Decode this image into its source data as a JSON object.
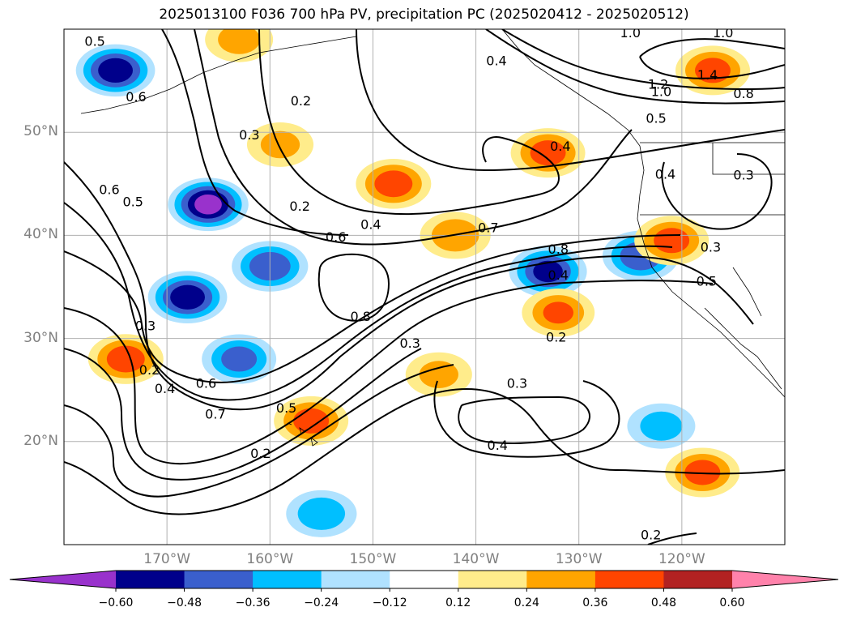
{
  "title": "2025013100 F036 700 hPa PV, precipitation PC (2025020412 - 2025020512)",
  "map": {
    "projection": "PlateCarree",
    "lon_range": [
      -180,
      -110
    ],
    "lat_range": [
      10,
      60
    ],
    "lat_ticks": [
      {
        "value": 20,
        "label": "20°N"
      },
      {
        "value": 30,
        "label": "30°N"
      },
      {
        "value": 40,
        "label": "40°N"
      },
      {
        "value": 50,
        "label": "50°N"
      }
    ],
    "lon_ticks": [
      {
        "value": -170,
        "label": "170°W"
      },
      {
        "value": -160,
        "label": "160°W"
      },
      {
        "value": -150,
        "label": "150°W"
      },
      {
        "value": -140,
        "label": "140°W"
      },
      {
        "value": -130,
        "label": "130°W"
      },
      {
        "value": -120,
        "label": "120°W"
      }
    ],
    "gridlines": true,
    "contour_line_color": "#000000",
    "contour_labels": [
      {
        "text": "0.5",
        "lon": -177,
        "lat": 58.8
      },
      {
        "text": "0.6",
        "lon": -173,
        "lat": 53.4
      },
      {
        "text": "0.2",
        "lon": -157,
        "lat": 53.0
      },
      {
        "text": "0.3",
        "lon": -162,
        "lat": 49.7
      },
      {
        "text": "0.4",
        "lon": -138,
        "lat": 56.9
      },
      {
        "text": "1.0",
        "lon": -125,
        "lat": 59.6
      },
      {
        "text": "1.0",
        "lon": -116,
        "lat": 59.6
      },
      {
        "text": "1.4",
        "lon": -117.5,
        "lat": 55.5
      },
      {
        "text": "1.2",
        "lon": -122.3,
        "lat": 54.6
      },
      {
        "text": "1.0",
        "lon": -122,
        "lat": 53.9
      },
      {
        "text": "0.8",
        "lon": -114,
        "lat": 53.7
      },
      {
        "text": "0.5",
        "lon": -122.5,
        "lat": 51.3
      },
      {
        "text": "0.4",
        "lon": -131.8,
        "lat": 48.6
      },
      {
        "text": "0.4",
        "lon": -121.6,
        "lat": 45.9
      },
      {
        "text": "0.3",
        "lon": -114,
        "lat": 45.8
      },
      {
        "text": "0.6",
        "lon": -175.6,
        "lat": 44.4
      },
      {
        "text": "0.5",
        "lon": -173.3,
        "lat": 43.2
      },
      {
        "text": "0.2",
        "lon": -157.1,
        "lat": 42.8
      },
      {
        "text": "0.4",
        "lon": -150.2,
        "lat": 41.0
      },
      {
        "text": "0.6",
        "lon": -153.6,
        "lat": 39.8
      },
      {
        "text": "0.7",
        "lon": -138.8,
        "lat": 40.7
      },
      {
        "text": "0.8",
        "lon": -132,
        "lat": 38.6
      },
      {
        "text": "0.4",
        "lon": -132,
        "lat": 36.1
      },
      {
        "text": "0.3",
        "lon": -117.2,
        "lat": 38.8
      },
      {
        "text": "0.5",
        "lon": -117.6,
        "lat": 35.5
      },
      {
        "text": "0.8",
        "lon": -151.2,
        "lat": 32.1
      },
      {
        "text": "0.3",
        "lon": -172.1,
        "lat": 31.2
      },
      {
        "text": "0.2",
        "lon": -171.7,
        "lat": 26.9
      },
      {
        "text": "0.2",
        "lon": -132.2,
        "lat": 30.1
      },
      {
        "text": "0.3",
        "lon": -146.4,
        "lat": 29.5
      },
      {
        "text": "0.3",
        "lon": -136,
        "lat": 25.6
      },
      {
        "text": "0.4",
        "lon": -170.2,
        "lat": 25.1
      },
      {
        "text": "0.6",
        "lon": -166.2,
        "lat": 25.6
      },
      {
        "text": "0.7",
        "lon": -165.3,
        "lat": 22.6
      },
      {
        "text": "0.5",
        "lon": -158.4,
        "lat": 23.2
      },
      {
        "text": "0.2",
        "lon": -160.9,
        "lat": 18.8
      },
      {
        "text": "0.4",
        "lon": -137.9,
        "lat": 19.6
      },
      {
        "text": "0.2",
        "lon": -123,
        "lat": 10.9
      }
    ],
    "shaded_regions": [
      {
        "sign": "negative",
        "lon": -175,
        "lat": 56,
        "max": 0.55
      },
      {
        "sign": "negative",
        "lon": -166,
        "lat": 43,
        "max": 0.62
      },
      {
        "sign": "negative",
        "lon": -160,
        "lat": 37,
        "max": 0.45
      },
      {
        "sign": "negative",
        "lon": -168,
        "lat": 34,
        "max": 0.55
      },
      {
        "sign": "negative",
        "lon": -163,
        "lat": 28,
        "max": 0.4
      },
      {
        "sign": "negative",
        "lon": -133,
        "lat": 36.5,
        "max": 0.5
      },
      {
        "sign": "negative",
        "lon": -124,
        "lat": 38,
        "max": 0.45
      },
      {
        "sign": "negative",
        "lon": -155,
        "lat": 13,
        "max": 0.32
      },
      {
        "sign": "negative",
        "lon": -122,
        "lat": 21.5,
        "max": 0.28
      },
      {
        "sign": "positive",
        "lon": -148,
        "lat": 45,
        "max": 0.42
      },
      {
        "sign": "positive",
        "lon": -142,
        "lat": 40,
        "max": 0.32
      },
      {
        "sign": "positive",
        "lon": -133,
        "lat": 48,
        "max": 0.4
      },
      {
        "sign": "positive",
        "lon": -117,
        "lat": 56,
        "max": 0.4
      },
      {
        "sign": "positive",
        "lon": -174,
        "lat": 28,
        "max": 0.42
      },
      {
        "sign": "positive",
        "lon": -156,
        "lat": 22,
        "max": 0.4
      },
      {
        "sign": "positive",
        "lon": -118,
        "lat": 17,
        "max": 0.4
      },
      {
        "sign": "positive",
        "lon": -121,
        "lat": 39.5,
        "max": 0.4
      },
      {
        "sign": "positive",
        "lon": -132,
        "lat": 32.5,
        "max": 0.36
      },
      {
        "sign": "positive",
        "lon": -143.6,
        "lat": 26.5,
        "max": 0.26
      },
      {
        "sign": "positive",
        "lon": -163,
        "lat": 59,
        "max": 0.28
      },
      {
        "sign": "positive",
        "lon": -159,
        "lat": 48.8,
        "max": 0.26
      }
    ]
  },
  "colorbar": {
    "ticks": [
      "−0.60",
      "−0.48",
      "−0.36",
      "−0.24",
      "−0.12",
      "0.12",
      "0.24",
      "0.36",
      "0.48",
      "0.60"
    ],
    "colors": [
      "#9932cc",
      "#00008b",
      "#3a5fcd",
      "#00bfff",
      "#b0e2ff",
      "#ffffff",
      "#ffec8b",
      "#ffa500",
      "#ff4500",
      "#b22222",
      "#ff82ab"
    ]
  }
}
